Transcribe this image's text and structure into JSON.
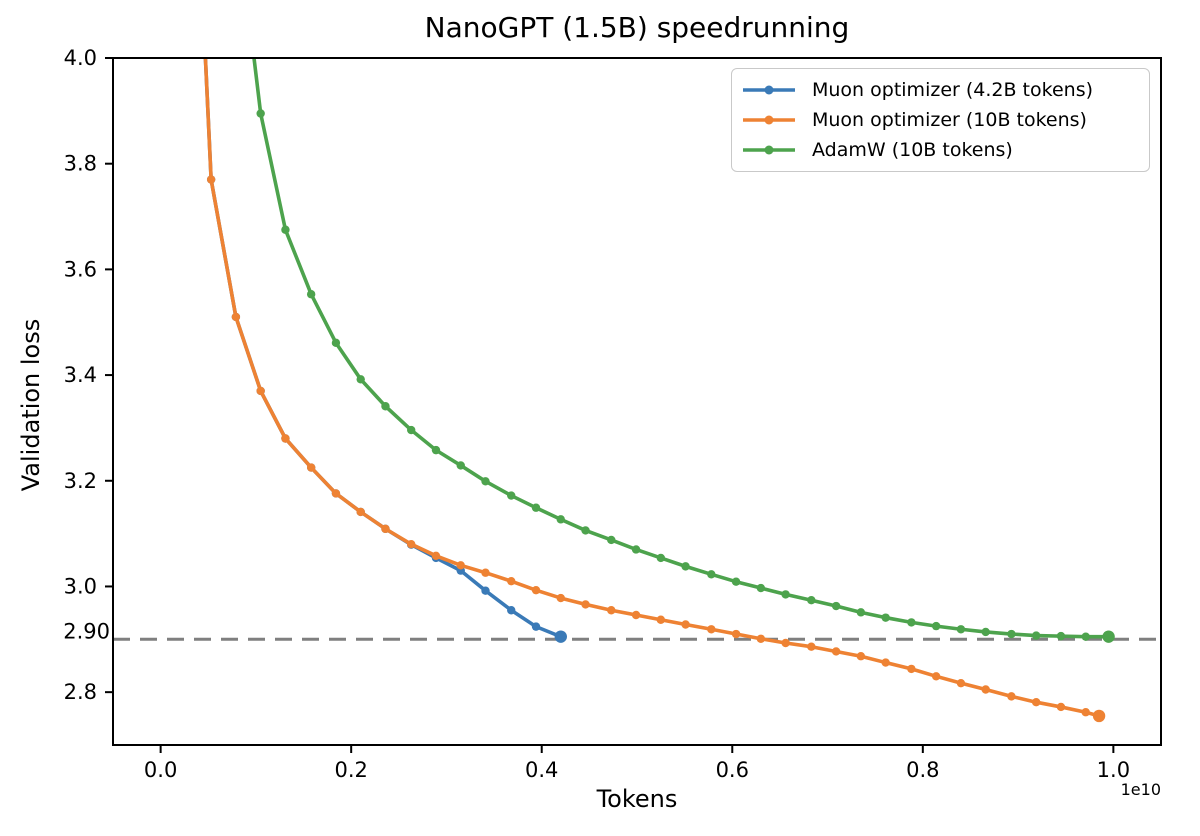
{
  "chart_data": {
    "type": "line",
    "title": "NanoGPT (1.5B) speedrunning",
    "xlabel": "Tokens",
    "ylabel": "Validation loss",
    "x_offset_label": "1e10",
    "x_unit": "billions of tokens",
    "xlim_e9": [
      -0.5,
      10.5
    ],
    "ylim": [
      2.7,
      4.0
    ],
    "xticks": {
      "values_e9": [
        0,
        2,
        4,
        6,
        8,
        10
      ],
      "labels": [
        "0.0",
        "0.2",
        "0.4",
        "0.6",
        "0.8",
        "1.0"
      ]
    },
    "yticks": {
      "values": [
        2.8,
        3.0,
        3.2,
        3.4,
        3.6,
        3.8,
        4.0
      ],
      "labels": [
        "2.8",
        "3.0",
        "3.2",
        "3.4",
        "3.6",
        "3.8",
        "4.0"
      ]
    },
    "extra_ytick": {
      "value": 2.9,
      "label": "2.90"
    },
    "reference_line": {
      "y": 2.9,
      "color": "#7f7f7f",
      "style": "dashed"
    },
    "grid": false,
    "legend_position": "upper right",
    "axis_color": "#000000",
    "series": [
      {
        "name": "Muon optimizer (4.2B tokens)",
        "color": "#3a7ab7",
        "x_e9": [
          0.47,
          0.53,
          0.79,
          1.05,
          1.31,
          1.58,
          1.84,
          2.1,
          2.36,
          2.63,
          2.89,
          3.15,
          3.41,
          3.68,
          3.94,
          4.2
        ],
        "y": [
          4.0,
          3.77,
          3.51,
          3.37,
          3.28,
          3.225,
          3.176,
          3.141,
          3.109,
          3.079,
          3.054,
          3.03,
          2.992,
          2.955,
          2.924,
          2.905
        ]
      },
      {
        "name": "Muon optimizer (10B tokens)",
        "color": "#ee8233",
        "x_e9": [
          0.47,
          0.53,
          0.79,
          1.05,
          1.31,
          1.58,
          1.84,
          2.1,
          2.36,
          2.63,
          2.89,
          3.15,
          3.41,
          3.68,
          3.94,
          4.2,
          4.46,
          4.73,
          4.99,
          5.25,
          5.51,
          5.78,
          6.04,
          6.3,
          6.56,
          6.83,
          7.09,
          7.35,
          7.61,
          7.88,
          8.14,
          8.4,
          8.66,
          8.93,
          9.19,
          9.45,
          9.71,
          9.85
        ],
        "y": [
          4.0,
          3.77,
          3.51,
          3.37,
          3.28,
          3.225,
          3.176,
          3.141,
          3.109,
          3.08,
          3.058,
          3.04,
          3.026,
          3.01,
          2.993,
          2.978,
          2.966,
          2.955,
          2.946,
          2.937,
          2.928,
          2.919,
          2.91,
          2.901,
          2.893,
          2.886,
          2.877,
          2.868,
          2.856,
          2.844,
          2.83,
          2.817,
          2.805,
          2.792,
          2.781,
          2.772,
          2.762,
          2.755
        ]
      },
      {
        "name": "AdamW (10B tokens)",
        "color": "#4da34d",
        "x_e9": [
          0.98,
          1.05,
          1.31,
          1.58,
          1.84,
          2.1,
          2.36,
          2.63,
          2.89,
          3.15,
          3.41,
          3.68,
          3.94,
          4.2,
          4.46,
          4.73,
          4.99,
          5.25,
          5.51,
          5.78,
          6.04,
          6.3,
          6.56,
          6.83,
          7.09,
          7.35,
          7.61,
          7.88,
          8.14,
          8.4,
          8.66,
          8.93,
          9.19,
          9.45,
          9.71,
          9.95
        ],
        "y": [
          4.0,
          3.895,
          3.675,
          3.553,
          3.461,
          3.392,
          3.341,
          3.296,
          3.258,
          3.229,
          3.199,
          3.172,
          3.149,
          3.127,
          3.106,
          3.088,
          3.07,
          3.054,
          3.038,
          3.023,
          3.009,
          2.997,
          2.985,
          2.974,
          2.963,
          2.951,
          2.941,
          2.932,
          2.925,
          2.919,
          2.914,
          2.91,
          2.907,
          2.906,
          2.905,
          2.905
        ]
      }
    ]
  }
}
